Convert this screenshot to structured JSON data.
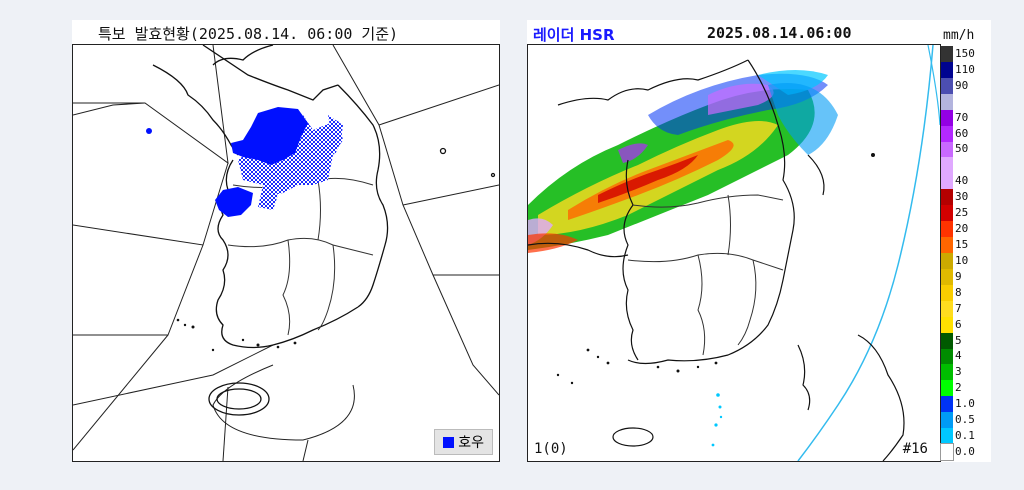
{
  "warning_map": {
    "title": "특보 발효현황(2025.08.14. 06:00 기준)",
    "legend_label": "호우",
    "legend_color": "#0010ff"
  },
  "radar_map": {
    "title_left": "레이더 HSR",
    "title_time": "2025.08.14.06:00",
    "unit": "mm/h",
    "bottom_left": "1(0)",
    "bottom_right": "#16",
    "scale": [
      {
        "label": "150",
        "color": "#333333"
      },
      {
        "label": "110",
        "color": "#000390"
      },
      {
        "label": "90",
        "color": "#4c4eb1"
      },
      {
        "label": "",
        "color": "#b3b4de"
      },
      {
        "label": "70",
        "color": "#9300e4"
      },
      {
        "label": "60",
        "color": "#b329ff"
      },
      {
        "label": "50",
        "color": "#c969ff"
      },
      {
        "label": "",
        "color": "#e0a9ff"
      },
      {
        "label": "40",
        "color": "#e0a9ff"
      },
      {
        "label": "30",
        "color": "#b40000"
      },
      {
        "label": "25",
        "color": "#d20000"
      },
      {
        "label": "20",
        "color": "#ff3300"
      },
      {
        "label": "15",
        "color": "#ff6600"
      },
      {
        "label": "10",
        "color": "#ccaa00"
      },
      {
        "label": "9",
        "color": "#e0b900"
      },
      {
        "label": "8",
        "color": "#f9cd00"
      },
      {
        "label": "7",
        "color": "#ffdc1f"
      },
      {
        "label": "6",
        "color": "#ffe100"
      },
      {
        "label": "5",
        "color": "#005a00"
      },
      {
        "label": "4",
        "color": "#008c00"
      },
      {
        "label": "3",
        "color": "#00be00"
      },
      {
        "label": "2",
        "color": "#00ff00"
      },
      {
        "label": "1.0",
        "color": "#0033f5"
      },
      {
        "label": "0.5",
        "color": "#009bf5"
      },
      {
        "label": "0.1",
        "color": "#00c8ff"
      },
      {
        "label": "0.0",
        "color": "#ffffff"
      }
    ]
  }
}
